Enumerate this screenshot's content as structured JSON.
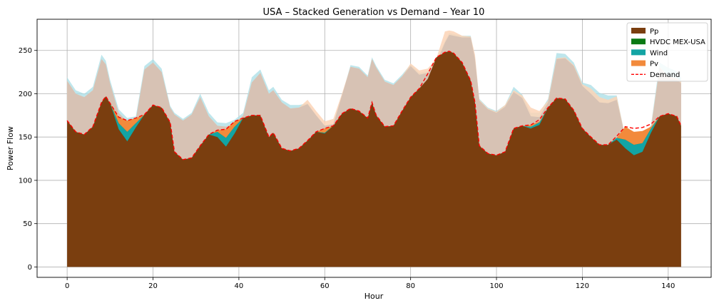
{
  "chart_data": {
    "type": "area",
    "title": "USA – Stacked Generation vs Demand – Year 10",
    "xlabel": "Hour",
    "ylabel": "Power Flow",
    "xlim": [
      -7,
      150
    ],
    "ylim": [
      -12,
      286
    ],
    "xticks": [
      0,
      20,
      40,
      60,
      80,
      100,
      120,
      140
    ],
    "yticks": [
      0,
      50,
      100,
      150,
      200,
      250
    ],
    "grid": true,
    "legend_position": "top-right",
    "x": [
      0,
      2,
      4,
      6,
      8,
      9,
      10,
      12,
      14,
      16,
      18,
      20,
      22,
      24,
      25,
      27,
      29,
      31,
      33,
      35,
      37,
      39,
      41,
      43,
      45,
      47,
      48,
      50,
      52,
      54,
      56,
      58,
      60,
      62,
      64,
      66,
      68,
      70,
      71,
      72,
      74,
      76,
      78,
      80,
      82,
      84,
      86,
      88,
      89,
      90,
      92,
      94,
      95,
      96,
      98,
      100,
      102,
      104,
      106,
      108,
      110,
      112,
      114,
      116,
      118,
      120,
      122,
      124,
      126,
      128,
      130,
      132,
      134,
      136,
      138,
      140,
      142,
      143
    ],
    "series": [
      {
        "name": "Pp",
        "color": "#7a3e0f",
        "values": [
          169,
          156,
          153,
          162,
          190,
          197,
          189,
          167,
          160,
          166,
          176,
          187,
          184,
          167,
          133,
          124,
          126,
          140,
          153,
          156,
          157,
          162,
          172,
          175,
          175,
          150,
          155,
          137,
          134,
          137,
          146,
          156,
          157,
          163,
          177,
          183,
          180,
          172,
          190,
          175,
          162,
          163,
          180,
          196,
          206,
          217,
          242,
          248,
          249,
          247,
          236,
          215,
          190,
          140,
          131,
          129,
          133,
          160,
          163,
          160,
          166,
          184,
          195,
          194,
          181,
          160,
          150,
          141,
          141,
          149,
          151,
          147,
          147,
          160,
          174,
          177,
          174,
          163
        ]
      },
      {
        "name": "HVDC MEX-USA",
        "color": "#0a7a14",
        "values": [
          0,
          0,
          0,
          0,
          0,
          0,
          0,
          -8,
          -15,
          -5,
          0,
          0,
          0,
          0,
          0,
          0,
          0,
          0,
          0,
          -6,
          -18,
          -8,
          0,
          0,
          0,
          0,
          0,
          0,
          0,
          0,
          0,
          0,
          -3,
          0,
          0,
          0,
          0,
          0,
          0,
          0,
          0,
          0,
          0,
          0,
          0,
          0,
          0,
          0,
          0,
          0,
          0,
          0,
          0,
          0,
          0,
          0,
          0,
          0,
          0,
          0,
          -2,
          0,
          0,
          0,
          0,
          0,
          0,
          0,
          0,
          -2,
          -14,
          -18,
          -14,
          -5,
          0,
          0,
          0,
          0
        ]
      },
      {
        "name": "Wind",
        "color": "#13a4a4",
        "values": [
          0,
          0,
          0,
          0,
          0,
          0,
          0,
          7,
          11,
          5,
          0,
          0,
          0,
          0,
          0,
          0,
          0,
          0,
          0,
          6,
          10,
          8,
          0,
          0,
          0,
          0,
          0,
          0,
          0,
          0,
          0,
          0,
          1,
          0,
          0,
          0,
          0,
          0,
          0,
          0,
          0,
          0,
          0,
          0,
          0,
          0,
          0,
          0,
          0,
          0,
          0,
          0,
          0,
          0,
          0,
          0,
          0,
          0,
          0,
          2,
          3,
          0,
          0,
          0,
          0,
          0,
          0,
          0,
          0,
          2,
          10,
          12,
          10,
          5,
          0,
          0,
          0,
          0
        ]
      },
      {
        "name": "Pv",
        "color": "#f28a3c",
        "values": [
          0,
          0,
          0,
          0,
          0,
          0,
          0,
          7,
          13,
          6,
          0,
          0,
          0,
          0,
          0,
          0,
          0,
          0,
          0,
          2,
          10,
          6,
          0,
          0,
          0,
          0,
          0,
          0,
          0,
          0,
          0,
          0,
          5,
          0,
          0,
          0,
          0,
          0,
          0,
          0,
          0,
          0,
          0,
          0,
          0,
          0,
          0,
          0,
          0,
          0,
          0,
          0,
          0,
          0,
          0,
          0,
          0,
          0,
          0,
          2,
          1,
          0,
          0,
          0,
          0,
          0,
          0,
          0,
          0,
          0,
          15,
          15,
          14,
          2,
          0,
          0,
          0,
          0
        ]
      }
    ],
    "demand": {
      "name": "Demand",
      "color": "#ff0000",
      "style": "dashed",
      "values": [
        169,
        156,
        153,
        162,
        190,
        197,
        189,
        173,
        169,
        172,
        176,
        187,
        184,
        167,
        133,
        124,
        126,
        140,
        153,
        158,
        159,
        168,
        172,
        175,
        175,
        150,
        155,
        137,
        134,
        137,
        146,
        156,
        160,
        163,
        177,
        183,
        180,
        172,
        190,
        175,
        162,
        163,
        180,
        196,
        206,
        223,
        242,
        248,
        249,
        247,
        236,
        215,
        190,
        140,
        131,
        129,
        133,
        160,
        163,
        164,
        170,
        184,
        195,
        194,
        181,
        160,
        150,
        141,
        141,
        151,
        162,
        160,
        161,
        165,
        174,
        177,
        174,
        163
      ]
    },
    "capacity_envelope": {
      "color": "#d7c2b4",
      "values": [
        215,
        200,
        196,
        204,
        240,
        234,
        212,
        178,
        168,
        170,
        228,
        236,
        225,
        184,
        176,
        169,
        176,
        196,
        174,
        163,
        162,
        166,
        175,
        213,
        224,
        200,
        204,
        190,
        183,
        184,
        188,
        175,
        163,
        165,
        198,
        231,
        229,
        219,
        240,
        230,
        214,
        210,
        220,
        232,
        222,
        224,
        236,
        259,
        268,
        267,
        265,
        265,
        240,
        192,
        182,
        178,
        185,
        202,
        195,
        174,
        173,
        190,
        240,
        241,
        232,
        209,
        200,
        190,
        189,
        193,
        150,
        149,
        148,
        160,
        230,
        218,
        216,
        212
      ]
    },
    "capacity_envelope_pv_top": [
      215,
      200,
      196,
      204,
      240,
      234,
      212,
      178,
      168,
      170,
      228,
      236,
      225,
      184,
      176,
      169,
      176,
      196,
      174,
      163,
      162,
      166,
      175,
      213,
      224,
      200,
      204,
      190,
      183,
      184,
      193,
      180,
      168,
      171,
      200,
      231,
      229,
      219,
      240,
      230,
      214,
      210,
      220,
      235,
      227,
      229,
      241,
      272,
      273,
      272,
      267,
      266,
      245,
      193,
      183,
      179,
      187,
      204,
      198,
      184,
      180,
      192,
      241,
      242,
      233,
      211,
      206,
      196,
      193,
      197,
      150,
      149,
      148,
      162,
      231,
      220,
      218,
      214
    ],
    "capacity_envelope_wind_top": [
      219,
      204,
      200,
      208,
      245,
      238,
      216,
      182,
      172,
      174,
      232,
      240,
      229,
      186,
      178,
      171,
      178,
      200,
      178,
      167,
      166,
      170,
      178,
      219,
      228,
      204,
      208,
      193,
      187,
      187,
      189,
      175,
      163,
      165,
      198,
      233,
      231,
      221,
      242,
      232,
      216,
      212,
      222,
      234,
      224,
      226,
      238,
      261,
      270,
      269,
      267,
      267,
      242,
      194,
      184,
      180,
      187,
      208,
      199,
      178,
      178,
      194,
      247,
      246,
      236,
      213,
      210,
      201,
      198,
      198,
      150,
      149,
      148,
      164,
      236,
      230,
      226,
      219
    ]
  },
  "legend": {
    "items": [
      {
        "label": "Pp",
        "kind": "patch",
        "color": "#7a3e0f"
      },
      {
        "label": "HVDC MEX-USA",
        "kind": "patch",
        "color": "#0a7a14"
      },
      {
        "label": "Wind",
        "kind": "patch",
        "color": "#13a4a4"
      },
      {
        "label": "Pv",
        "kind": "patch",
        "color": "#f28a3c"
      },
      {
        "label": "Demand",
        "kind": "line",
        "color": "#ff0000"
      }
    ]
  }
}
